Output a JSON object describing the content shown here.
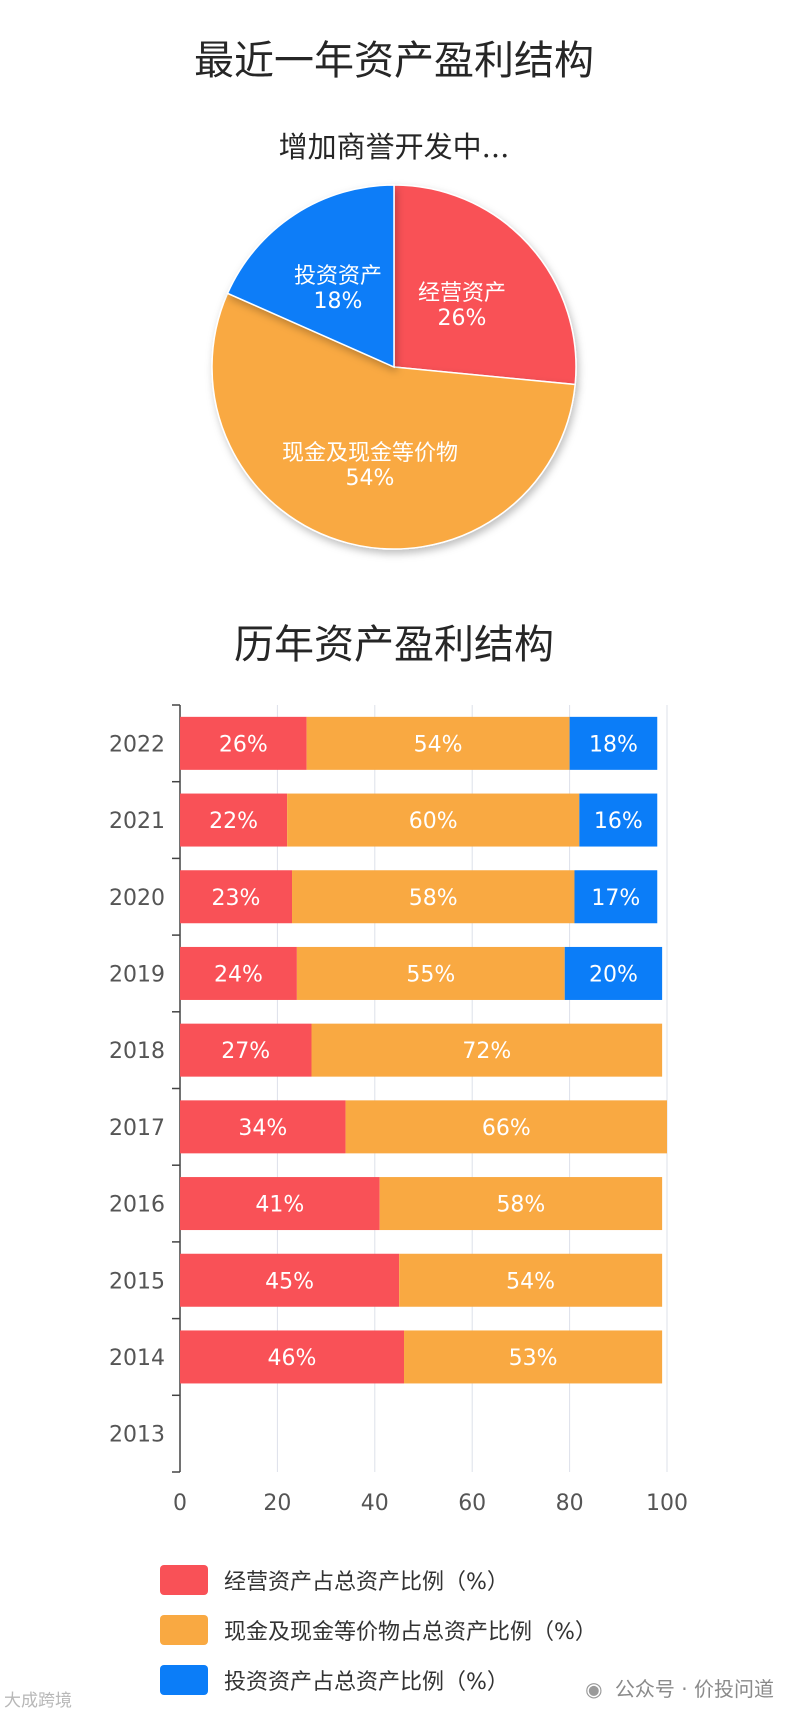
{
  "title": "最近一年资产盈利结构",
  "pie_subtitle": "增加商誉开发中...",
  "bar_title": "历年资产盈利结构",
  "colors": {
    "operating": "#f95157",
    "cash": "#f9a942",
    "investment": "#0b7df8"
  },
  "chart_data": [
    {
      "type": "pie",
      "title": "增加商誉开发中...",
      "slices": [
        {
          "label": "经营资产",
          "value": 26,
          "color": "#f95157"
        },
        {
          "label": "现金及现金等价物",
          "value": 54,
          "color": "#f9a942"
        },
        {
          "label": "投资资产",
          "value": 18,
          "color": "#0b7df8"
        }
      ]
    },
    {
      "type": "bar",
      "orientation": "horizontal",
      "stacked": true,
      "title": "历年资产盈利结构",
      "categories": [
        "2022",
        "2021",
        "2020",
        "2019",
        "2018",
        "2017",
        "2016",
        "2015",
        "2014",
        "2013"
      ],
      "series": [
        {
          "name": "经营资产占总资产比例（%）",
          "color": "#f95157",
          "values": [
            26,
            22,
            23,
            24,
            27,
            34,
            41,
            45,
            46,
            null
          ]
        },
        {
          "name": "现金及现金等价物占总资产比例（%）",
          "color": "#f9a942",
          "values": [
            54,
            60,
            58,
            55,
            72,
            66,
            58,
            54,
            53,
            null
          ]
        },
        {
          "name": "投资资产占总资产比例（%）",
          "color": "#0b7df8",
          "values": [
            18,
            16,
            17,
            20,
            null,
            null,
            null,
            null,
            null,
            null
          ]
        }
      ],
      "xlim": [
        0,
        100
      ],
      "xticks": [
        0,
        20,
        40,
        60,
        80,
        100
      ],
      "legend_position": "bottom"
    }
  ],
  "watermark_left": "大成跨境",
  "watermark_right": "公众号 · 价投问道",
  "wechat_icon": "wechat-icon"
}
